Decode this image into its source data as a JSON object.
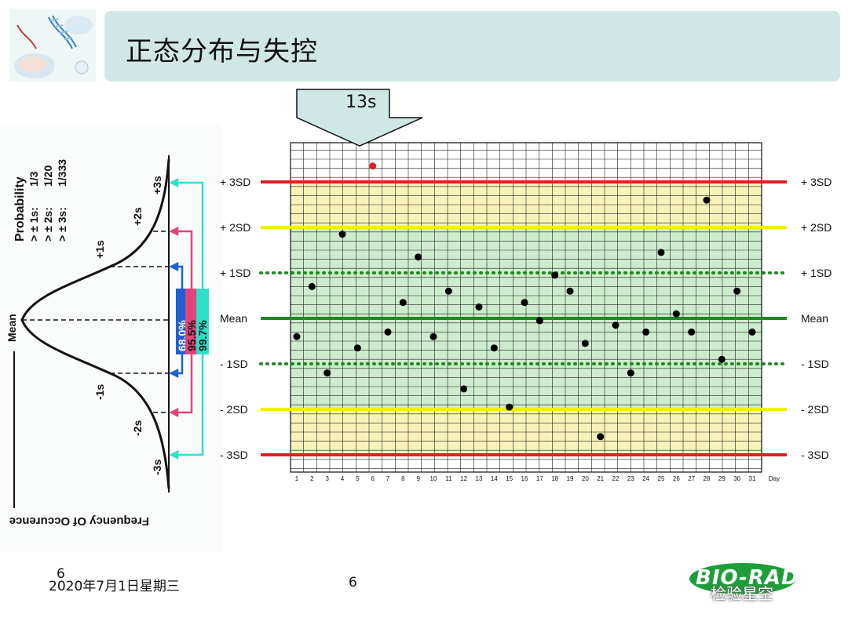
{
  "slide": {
    "title": "正态分布与失控",
    "footer_date": "2020年7月1日星期三",
    "footer_number_overlay": "6",
    "footer_page": "6",
    "logo": "BIO-RAD",
    "watermark": "检验星空"
  },
  "bell_curve": {
    "probability_title": "Probability",
    "probability_rows": [
      {
        "label": "> ± 1s:",
        "value": "1/3"
      },
      {
        "label": "> ± 2s:",
        "value": "1/20"
      },
      {
        "label": "> ± 3s:",
        "value": "1/333"
      }
    ],
    "sigma_labels": [
      "+3s",
      "+2s",
      "+1s",
      "Mean",
      "-1s",
      "-2s",
      "-3s"
    ],
    "percent_labels": [
      {
        "text": "68.0%",
        "color": "#1f5fd6"
      },
      {
        "text": "95.5%",
        "color": "#e0457a"
      },
      {
        "text": "99.7%",
        "color": "#2fe0c8"
      }
    ],
    "axis_label": "Frequency Of Occurence"
  },
  "callout": {
    "text": "13s"
  },
  "chart_data": {
    "type": "scatter",
    "title": "",
    "xlabel": "Day",
    "ylabel": "",
    "x_ticks": [
      1,
      2,
      3,
      4,
      5,
      6,
      7,
      8,
      9,
      10,
      11,
      12,
      13,
      14,
      15,
      16,
      17,
      18,
      19,
      20,
      21,
      22,
      23,
      24,
      25,
      26,
      27,
      28,
      29,
      30,
      31
    ],
    "xlim": [
      1,
      31
    ],
    "ylim": [
      -3,
      3.8
    ],
    "control_lines": [
      {
        "label": "+ 3SD",
        "value": 3,
        "color": "#e02020",
        "style": "solid"
      },
      {
        "label": "+ 2SD",
        "value": 2,
        "color": "#f0f000",
        "style": "solid"
      },
      {
        "label": "+ 1SD",
        "value": 1,
        "color": "#1e8a1e",
        "style": "dotted"
      },
      {
        "label": "Mean",
        "value": 0,
        "color": "#1e8a1e",
        "style": "solid"
      },
      {
        "label": "- 1SD",
        "value": -1,
        "color": "#1e8a1e",
        "style": "dotted"
      },
      {
        "label": "- 2SD",
        "value": -2,
        "color": "#f0f000",
        "style": "solid"
      },
      {
        "label": "- 3SD",
        "value": -3,
        "color": "#e02020",
        "style": "solid"
      }
    ],
    "zone_colors": {
      "within_2sd": "#cdeccc",
      "between_2_3sd": "#f7f2b8"
    },
    "points": [
      {
        "x": 1,
        "y": -0.4
      },
      {
        "x": 2,
        "y": 0.7
      },
      {
        "x": 3,
        "y": -1.2
      },
      {
        "x": 4,
        "y": 1.85
      },
      {
        "x": 5,
        "y": -0.65
      },
      {
        "x": 6,
        "y": 3.35,
        "color": "#e02020"
      },
      {
        "x": 7,
        "y": -0.3
      },
      {
        "x": 8,
        "y": 0.35
      },
      {
        "x": 9,
        "y": 1.35
      },
      {
        "x": 10,
        "y": -0.4
      },
      {
        "x": 11,
        "y": 0.6
      },
      {
        "x": 12,
        "y": -1.55
      },
      {
        "x": 13,
        "y": 0.25
      },
      {
        "x": 14,
        "y": -0.65
      },
      {
        "x": 15,
        "y": -1.95
      },
      {
        "x": 16,
        "y": 0.35
      },
      {
        "x": 17,
        "y": -0.05
      },
      {
        "x": 18,
        "y": 0.95
      },
      {
        "x": 19,
        "y": 0.6
      },
      {
        "x": 20,
        "y": -0.55
      },
      {
        "x": 21,
        "y": -2.6
      },
      {
        "x": 22,
        "y": -0.15
      },
      {
        "x": 23,
        "y": -1.2
      },
      {
        "x": 24,
        "y": -0.3
      },
      {
        "x": 25,
        "y": 1.45
      },
      {
        "x": 26,
        "y": 0.1
      },
      {
        "x": 27,
        "y": -0.3
      },
      {
        "x": 28,
        "y": 2.6
      },
      {
        "x": 29,
        "y": -0.9
      },
      {
        "x": 30,
        "y": 0.6
      },
      {
        "x": 31,
        "y": -0.3
      }
    ]
  }
}
